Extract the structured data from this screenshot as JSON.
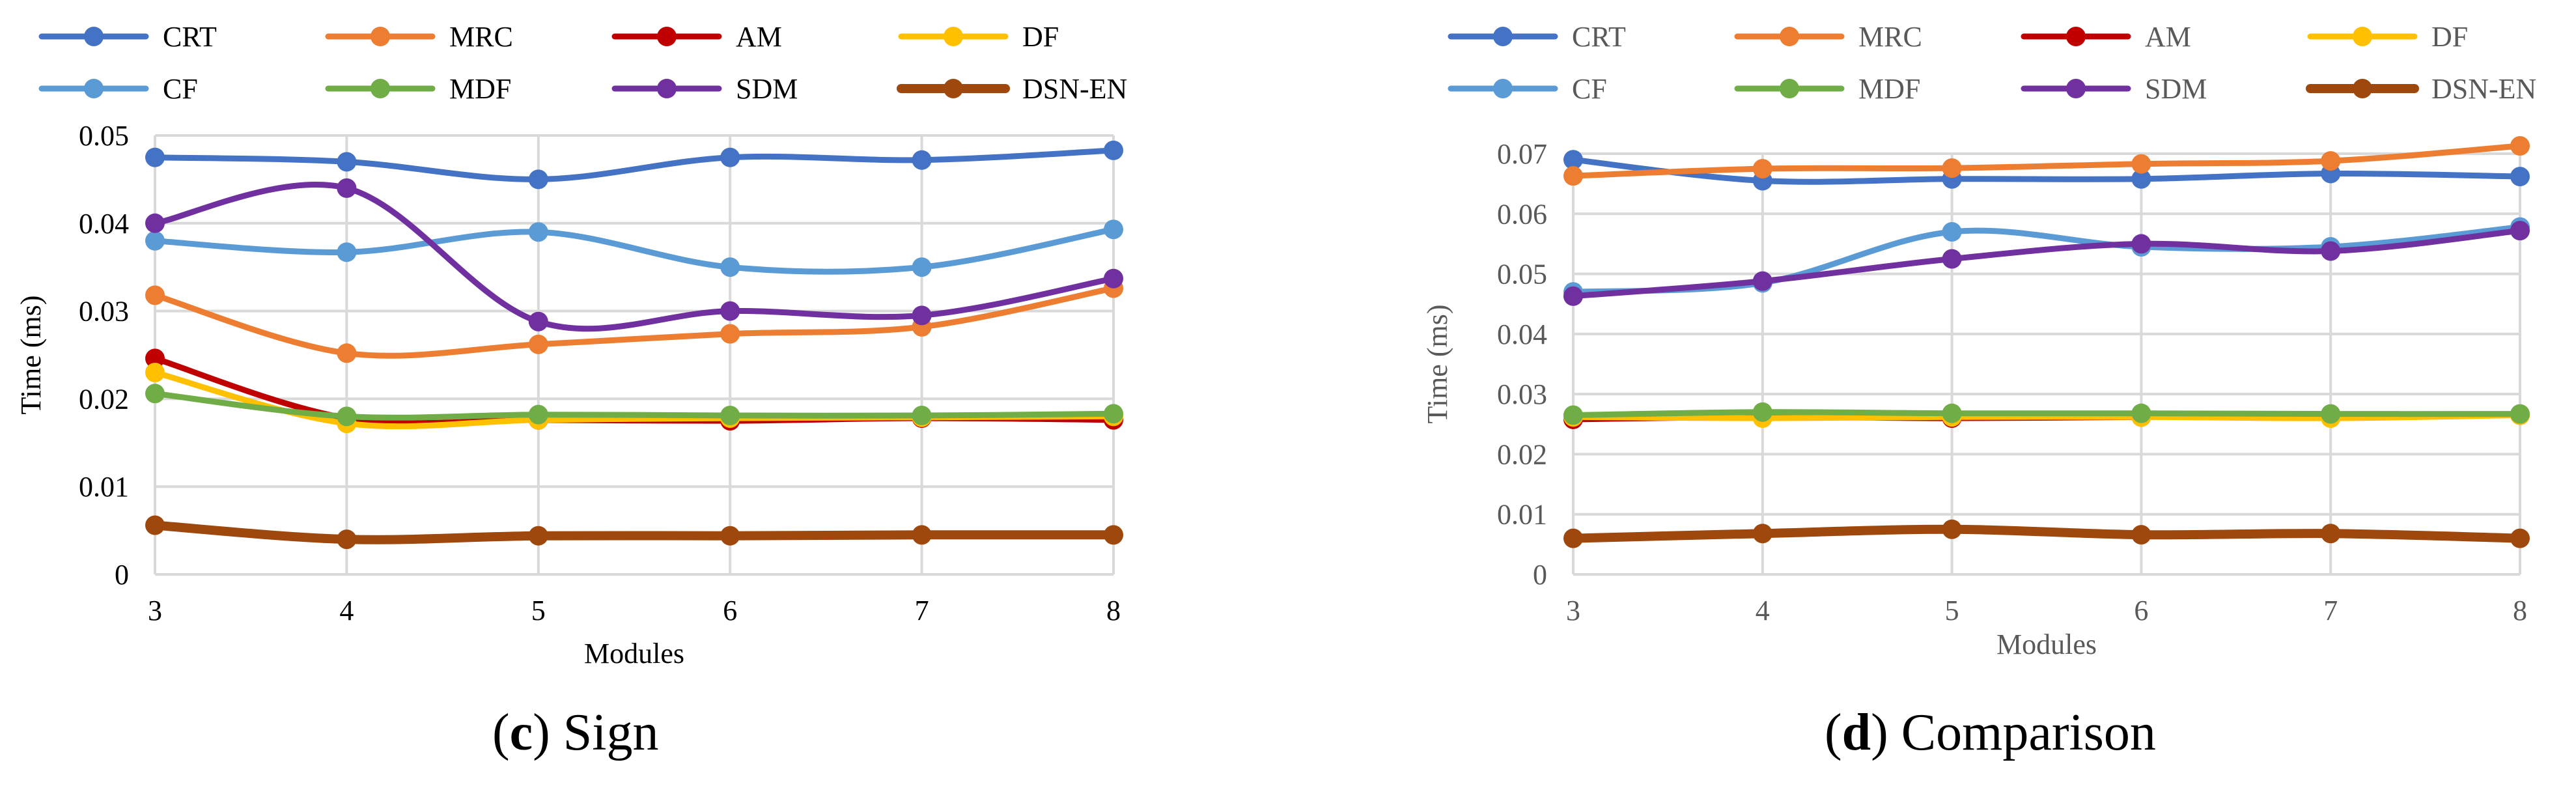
{
  "captions": [
    {
      "letter": "c",
      "text": "Sign"
    },
    {
      "letter": "d",
      "text": "Comparison"
    }
  ],
  "chart_data": [
    {
      "type": "line",
      "title": "(c) Sign",
      "xlabel": "Modules",
      "ylabel": "Time (ms)",
      "x": [
        3,
        4,
        5,
        6,
        7,
        8
      ],
      "ylim": [
        0,
        0.05
      ],
      "yticks": [
        0,
        0.01,
        0.02,
        0.03,
        0.04,
        0.05
      ],
      "ytick_labels": [
        "0",
        "0.01",
        "0.02",
        "0.03",
        "0.04",
        "0.05"
      ],
      "grid": true,
      "legend": "top",
      "series": [
        {
          "name": "CRT",
          "color": "#4472C4",
          "values": [
            0.0475,
            0.047,
            0.045,
            0.0475,
            0.0472,
            0.0483
          ]
        },
        {
          "name": "MRC",
          "color": "#ED7D31",
          "values": [
            0.0318,
            0.0252,
            0.0262,
            0.0274,
            0.0282,
            0.0326
          ]
        },
        {
          "name": "AM",
          "color": "#C00000",
          "values": [
            0.0246,
            0.0178,
            0.0176,
            0.0175,
            0.0178,
            0.0176
          ]
        },
        {
          "name": "DF",
          "color": "#FFC000",
          "values": [
            0.023,
            0.0172,
            0.0176,
            0.0178,
            0.0179,
            0.018
          ]
        },
        {
          "name": "CF",
          "color": "#5B9BD5",
          "values": [
            0.038,
            0.0367,
            0.039,
            0.035,
            0.035,
            0.0393
          ]
        },
        {
          "name": "MDF",
          "color": "#70AD47",
          "values": [
            0.0206,
            0.018,
            0.0182,
            0.0181,
            0.0181,
            0.0183
          ]
        },
        {
          "name": "SDM",
          "color": "#7030A0",
          "values": [
            0.04,
            0.044,
            0.0288,
            0.03,
            0.0295,
            0.0337
          ]
        },
        {
          "name": "DSN-EN",
          "color": "#9E480E",
          "values": [
            0.0056,
            0.004,
            0.0044,
            0.0044,
            0.0045,
            0.0045
          ]
        }
      ]
    },
    {
      "type": "line",
      "title": "(d) Comparison",
      "xlabel": "Modules",
      "ylabel": "Time (ms)",
      "x": [
        3,
        4,
        5,
        6,
        7,
        8
      ],
      "ylim": [
        0,
        0.07
      ],
      "yticks": [
        0,
        0.01,
        0.02,
        0.03,
        0.04,
        0.05,
        0.06,
        0.07
      ],
      "ytick_labels": [
        "0",
        "0.01",
        "0.02",
        "0.03",
        "0.04",
        "0.05",
        "0.06",
        "0.07"
      ],
      "grid": true,
      "legend": "top",
      "series": [
        {
          "name": "CRT",
          "color": "#4472C4",
          "values": [
            0.069,
            0.0655,
            0.0658,
            0.0658,
            0.0667,
            0.0662
          ]
        },
        {
          "name": "MRC",
          "color": "#ED7D31",
          "values": [
            0.0663,
            0.0675,
            0.0676,
            0.0683,
            0.0688,
            0.0713
          ]
        },
        {
          "name": "AM",
          "color": "#C00000",
          "values": [
            0.0258,
            0.0262,
            0.026,
            0.0262,
            0.0263,
            0.0265
          ]
        },
        {
          "name": "DF",
          "color": "#FFC000",
          "values": [
            0.0262,
            0.026,
            0.0262,
            0.0262,
            0.026,
            0.0265
          ]
        },
        {
          "name": "CF",
          "color": "#5B9BD5",
          "values": [
            0.047,
            0.0485,
            0.057,
            0.0545,
            0.0545,
            0.0578
          ]
        },
        {
          "name": "MDF",
          "color": "#70AD47",
          "values": [
            0.0265,
            0.027,
            0.0268,
            0.0268,
            0.0267,
            0.0267
          ]
        },
        {
          "name": "SDM",
          "color": "#7030A0",
          "values": [
            0.0463,
            0.0488,
            0.0525,
            0.055,
            0.0538,
            0.0572
          ]
        },
        {
          "name": "DSN-EN",
          "color": "#9E480E",
          "values": [
            0.006,
            0.0068,
            0.0075,
            0.0066,
            0.0068,
            0.006
          ]
        }
      ]
    }
  ]
}
